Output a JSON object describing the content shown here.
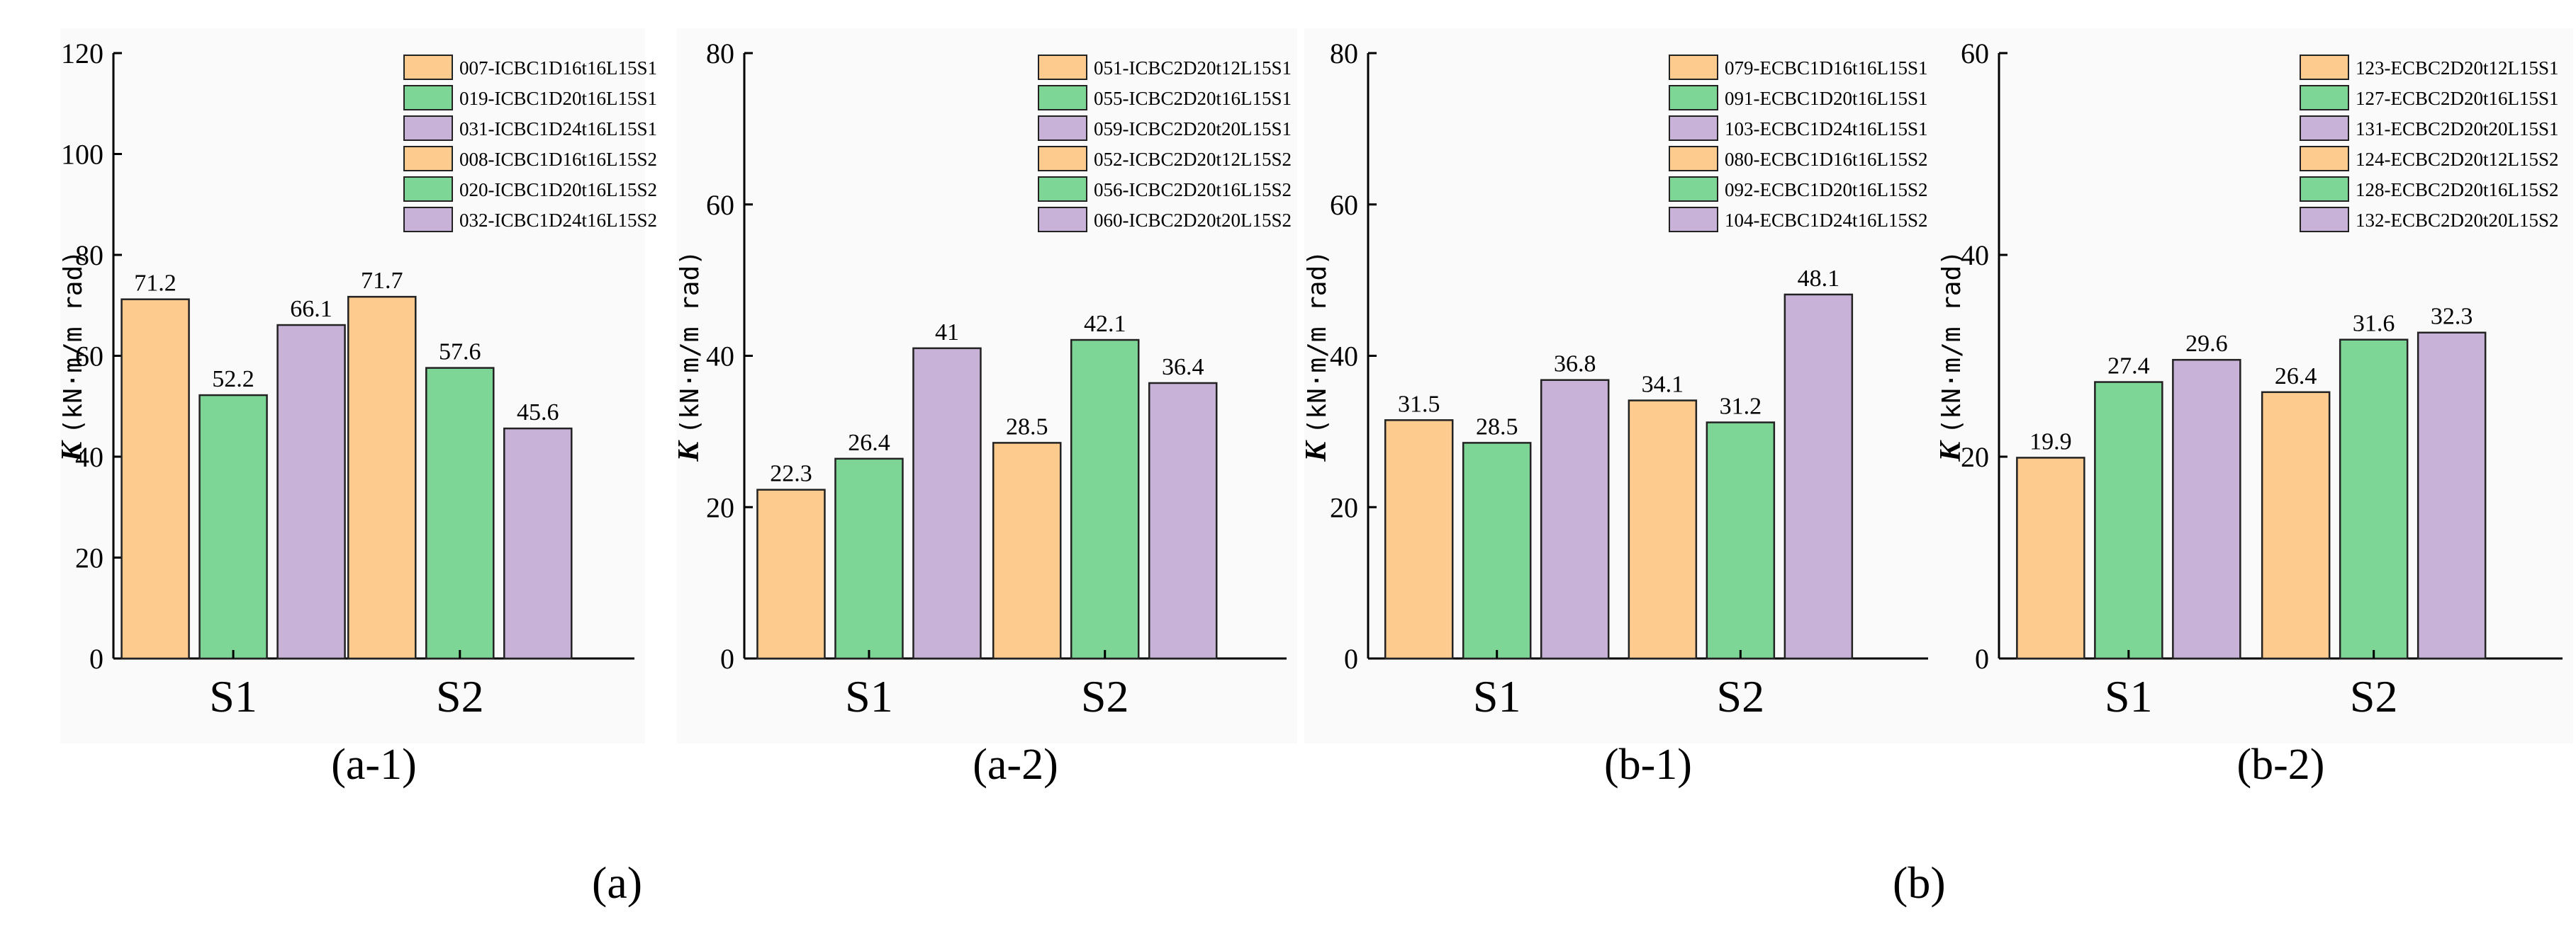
{
  "ylabel_symbol": "K",
  "ylabel_units": "(kN·m/m rad)",
  "colors": {
    "orange": "#FDCB8E",
    "green": "#7ED696",
    "purple": "#C8B2D8",
    "stroke": "#222222",
    "panel_bg": "#FAFAFA"
  },
  "captions": {
    "a": "(a)",
    "b": "(b)"
  },
  "chart_data": [
    {
      "id": "a-1",
      "type": "bar",
      "subtitle": "(a-1)",
      "categories": [
        "S1",
        "S2"
      ],
      "ylabel": "K (kN·m/m rad)",
      "ylim": [
        0,
        120
      ],
      "yticks": [
        0,
        20,
        40,
        60,
        80,
        100,
        120
      ],
      "values": [
        [
          71.2,
          52.2,
          66.1
        ],
        [
          71.7,
          57.6,
          45.6
        ]
      ],
      "value_labels": [
        [
          "71.2",
          "52.2",
          "66.1"
        ],
        [
          "71.7",
          "57.6",
          "45.6"
        ]
      ],
      "legend": [
        "007-ICBC1D16t16L15S1",
        "019-ICBC1D20t16L15S1",
        "031-ICBC1D24t16L15S1",
        "008-ICBC1D16t16L15S2",
        "020-ICBC1D20t16L15S2",
        "032-ICBC1D24t16L15S2"
      ]
    },
    {
      "id": "a-2",
      "type": "bar",
      "subtitle": "(a-2)",
      "categories": [
        "S1",
        "S2"
      ],
      "ylabel": "K (kN·m/m rad)",
      "ylim": [
        0,
        80
      ],
      "yticks": [
        0,
        20,
        40,
        60,
        80
      ],
      "values": [
        [
          22.3,
          26.4,
          41
        ],
        [
          28.5,
          42.1,
          36.4
        ]
      ],
      "value_labels": [
        [
          "22.3",
          "26.4",
          "41"
        ],
        [
          "28.5",
          "42.1",
          "36.4"
        ]
      ],
      "legend": [
        "051-ICBC2D20t12L15S1",
        "055-ICBC2D20t16L15S1",
        "059-ICBC2D20t20L15S1",
        "052-ICBC2D20t12L15S2",
        "056-ICBC2D20t16L15S2",
        "060-ICBC2D20t20L15S2"
      ]
    },
    {
      "id": "b-1",
      "type": "bar",
      "subtitle": "(b-1)",
      "categories": [
        "S1",
        "S2"
      ],
      "ylabel": "K (kN·m/m rad)",
      "ylim": [
        0,
        80
      ],
      "yticks": [
        0,
        20,
        40,
        60,
        80
      ],
      "values": [
        [
          31.5,
          28.5,
          36.8
        ],
        [
          34.1,
          31.2,
          48.1
        ]
      ],
      "value_labels": [
        [
          "31.5",
          "28.5",
          "36.8"
        ],
        [
          "34.1",
          "31.2",
          "48.1"
        ]
      ],
      "legend": [
        "079-ECBC1D16t16L15S1",
        "091-ECBC1D20t16L15S1",
        "103-ECBC1D24t16L15S1",
        "080-ECBC1D16t16L15S2",
        "092-ECBC1D20t16L15S2",
        "104-ECBC1D24t16L15S2"
      ]
    },
    {
      "id": "b-2",
      "type": "bar",
      "subtitle": "(b-2)",
      "categories": [
        "S1",
        "S2"
      ],
      "ylabel": "K (kN·m/m rad)",
      "ylim": [
        0,
        60
      ],
      "yticks": [
        0,
        20,
        40,
        60
      ],
      "values": [
        [
          19.9,
          27.4,
          29.6
        ],
        [
          26.4,
          31.6,
          32.3
        ]
      ],
      "value_labels": [
        [
          "19.9",
          "27.4",
          "29.6"
        ],
        [
          "26.4",
          "31.6",
          "32.3"
        ]
      ],
      "legend": [
        "123-ECBC2D20t12L15S1",
        "127-ECBC2D20t16L15S1",
        "131-ECBC2D20t20L15S1",
        "124-ECBC2D20t12L15S2",
        "128-ECBC2D20t16L15S2",
        "132-ECBC2D20t20L15S2"
      ]
    }
  ]
}
